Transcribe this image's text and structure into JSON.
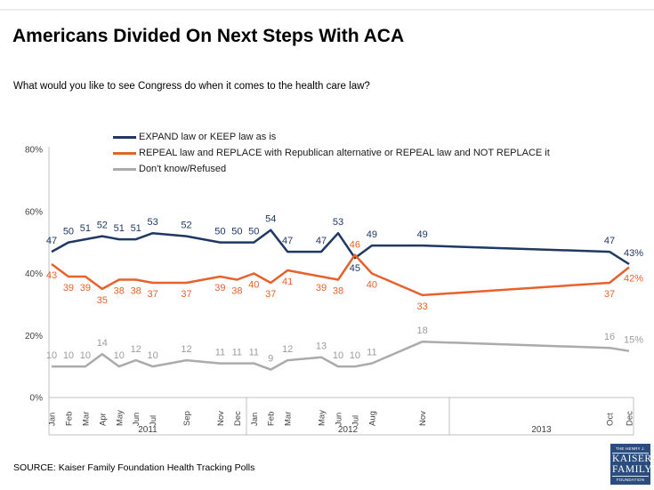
{
  "header": {
    "title": "Americans Divided On Next Steps With ACA",
    "subtitle": "What would you like to see Congress do when it comes to the health care law?"
  },
  "chart_data": {
    "type": "line",
    "title": "Americans Divided On Next Steps With ACA",
    "xlabel": "",
    "ylabel": "",
    "ylim": [
      0,
      80
    ],
    "ytick_values": [
      0,
      20,
      40,
      60,
      80
    ],
    "ytick_labels": [
      "0%",
      "20%",
      "40%",
      "60%",
      "80%"
    ],
    "grid": false,
    "legend_position": "top-left",
    "year_groups": [
      {
        "year": "2011",
        "months": [
          "Jan",
          "Feb",
          "Mar",
          "Apr",
          "May",
          "Jun",
          "Jul",
          "Sep",
          "Nov",
          "Dec"
        ]
      },
      {
        "year": "2012",
        "months": [
          "Jan",
          "Feb",
          "Mar",
          "May",
          "Jun",
          "Jul",
          "Aug",
          "Nov"
        ]
      },
      {
        "year": "2013",
        "months": [
          "Oct",
          "Dec"
        ]
      }
    ],
    "series": [
      {
        "name": "EXPAND law or KEEP law as is",
        "color": "#1F3864",
        "values": [
          47,
          50,
          51,
          52,
          51,
          51,
          53,
          52,
          50,
          50,
          50,
          54,
          47,
          47,
          53,
          45,
          49,
          49,
          47,
          43
        ]
      },
      {
        "name": "REPEAL law and REPLACE with Republican alternative or REPEAL law and NOT REPLACE it",
        "color": "#E8612C",
        "values": [
          43,
          39,
          39,
          35,
          38,
          38,
          37,
          37,
          39,
          38,
          40,
          37,
          41,
          39,
          38,
          46,
          40,
          33,
          37,
          42
        ]
      },
      {
        "name": "Don't know/Refused",
        "color": "#ABABAB",
        "label_color": "#9C9C9C",
        "values": [
          10,
          10,
          10,
          14,
          10,
          12,
          10,
          12,
          11,
          11,
          11,
          9,
          12,
          13,
          10,
          10,
          11,
          18,
          16,
          15
        ]
      }
    ],
    "final_label_suffix": "%"
  },
  "footer": {
    "source": "SOURCE: Kaiser Family Foundation Health Tracking Polls"
  },
  "logo": {
    "top": "THE HENRY J.",
    "name1": "KAISER",
    "name2": "FAMILY",
    "bottom": "FOUNDATION"
  },
  "colors": {
    "expand": "#1F3864",
    "repeal": "#E8612C",
    "dont_know": "#ABABAB",
    "axis": "#C0C0C0",
    "tick_text": "#3F3F3F",
    "logo_bg": "#2B4C7E"
  }
}
